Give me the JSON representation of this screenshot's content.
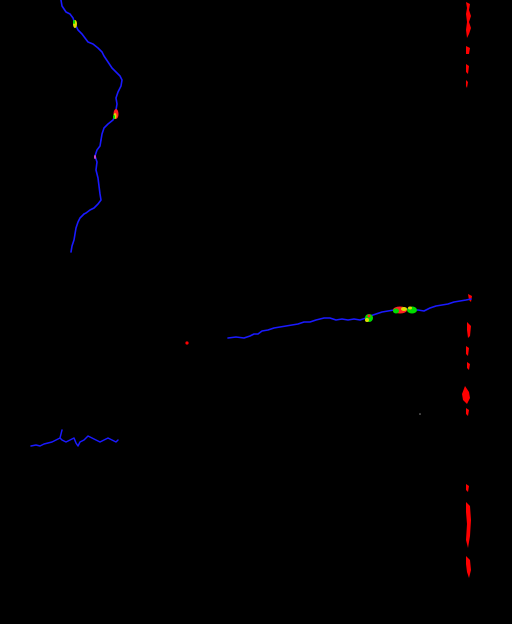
{
  "image": {
    "background": "#000000",
    "description_colors": {
      "trace": "#1414ff",
      "highlight_red": "#ff0000",
      "highlight_green": "#00dd00",
      "highlight_yellow": "#dddd00",
      "highlight_magenta": "#cc44cc"
    }
  }
}
